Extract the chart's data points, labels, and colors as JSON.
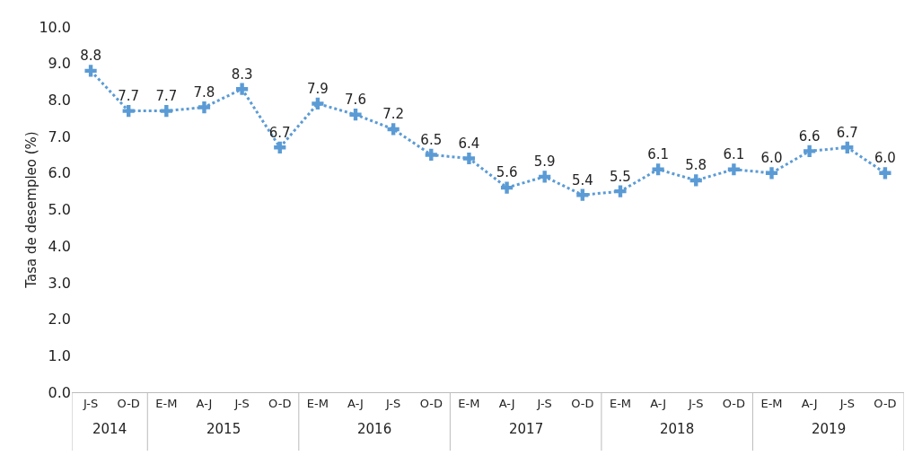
{
  "chart_data": {
    "type": "line",
    "ylabel": "Tasa de desempleo (%)",
    "categories": [
      "J-S",
      "O-D",
      "E-M",
      "A-J",
      "J-S",
      "O-D",
      "E-M",
      "A-J",
      "J-S",
      "O-D",
      "E-M",
      "A-J",
      "J-S",
      "O-D",
      "E-M",
      "A-J",
      "J-S",
      "O-D",
      "E-M",
      "A-J",
      "J-S",
      "O-D"
    ],
    "values": [
      8.8,
      7.7,
      7.7,
      7.8,
      8.3,
      6.7,
      7.9,
      7.6,
      7.2,
      6.5,
      6.4,
      5.6,
      5.9,
      5.4,
      5.5,
      6.1,
      5.8,
      6.1,
      6.0,
      6.6,
      6.7,
      6.0
    ],
    "value_labels": [
      "8.8",
      "7.7",
      "7.7",
      "7.8",
      "8.3",
      "6.7",
      "7.9",
      "7.6",
      "7.2",
      "6.5",
      "6.4",
      "5.6",
      "5.9",
      "5.4",
      "5.5",
      "6.1",
      "5.8",
      "6.1",
      "6.0",
      "6.6",
      "6.7",
      "6.0"
    ],
    "color": "#5b9bd5",
    "marker": "cross",
    "line_style": "dotted",
    "grid": false,
    "legend": false,
    "ylim": [
      0,
      10
    ],
    "yticks": [
      {
        "value": 0,
        "label": "0.0"
      },
      {
        "value": 1,
        "label": "1.0"
      },
      {
        "value": 2,
        "label": "2.0"
      },
      {
        "value": 3,
        "label": "3.0"
      },
      {
        "value": 4,
        "label": "4.0"
      },
      {
        "value": 5,
        "label": "5.0"
      },
      {
        "value": 6,
        "label": "6.0"
      },
      {
        "value": 7,
        "label": "7.0"
      },
      {
        "value": 8,
        "label": "8.0"
      },
      {
        "value": 9,
        "label": "9.0"
      },
      {
        "value": 10,
        "label": "10.0"
      }
    ],
    "annotations": [
      "2014",
      "2015",
      "2016",
      "2017",
      "2018",
      "2019"
    ]
  }
}
